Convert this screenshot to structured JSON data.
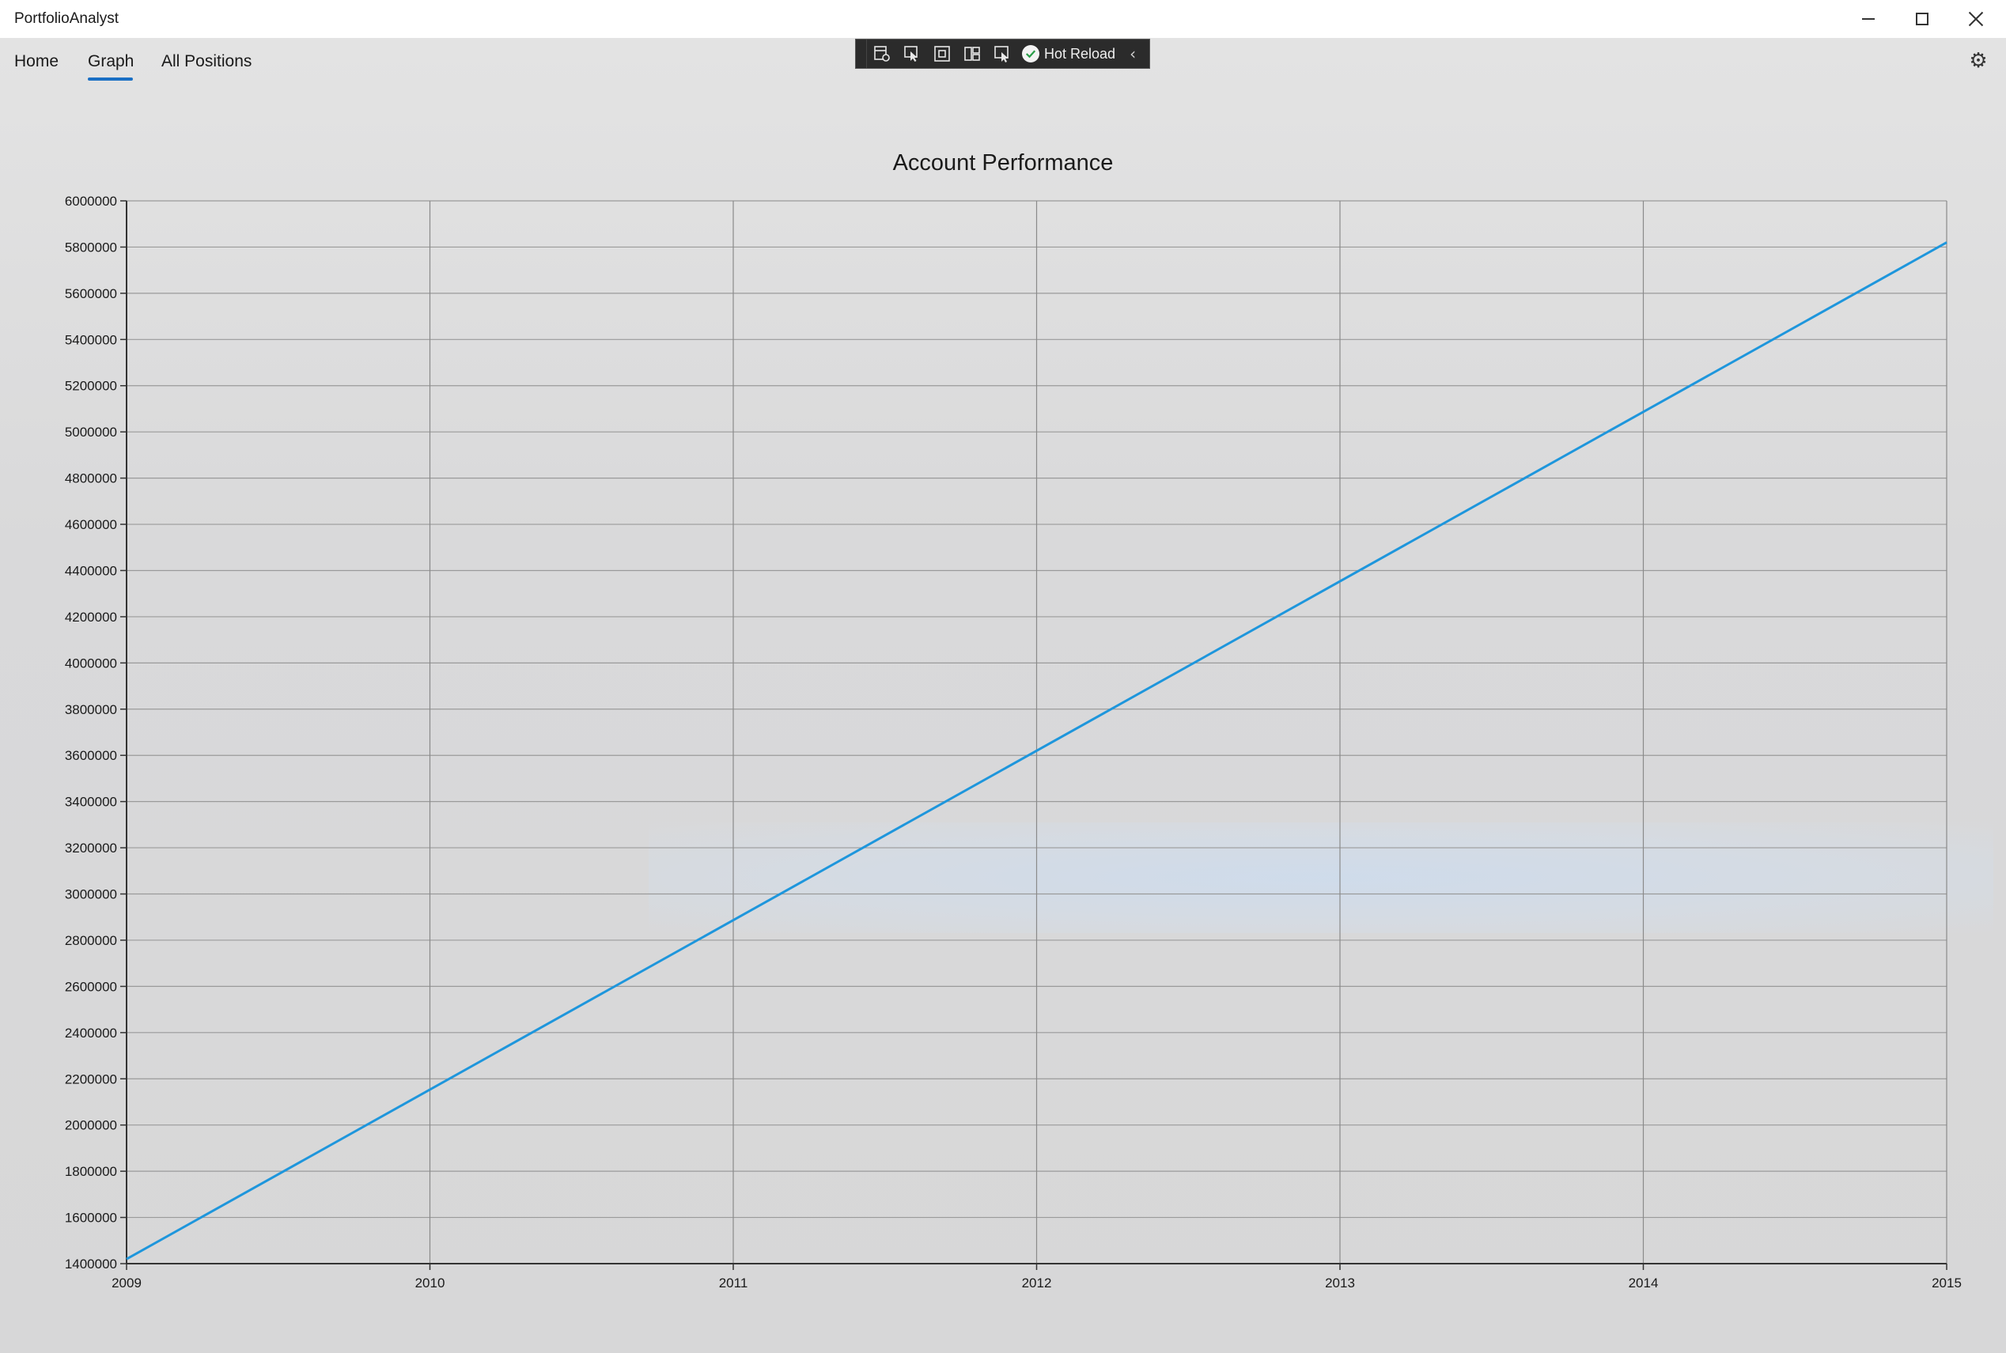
{
  "window": {
    "title": "PortfolioAnalyst"
  },
  "nav": {
    "items": [
      {
        "label": "Home"
      },
      {
        "label": "Graph",
        "selected": true
      },
      {
        "label": "All Positions"
      }
    ],
    "accent_color": "#1a6fc4"
  },
  "dev_toolbar": {
    "icons": [
      "live-visual-tree-icon",
      "select-element-icon",
      "display-layout-adorners-icon",
      "track-focus-icon",
      "binding-failures-icon"
    ],
    "hot_reload_label": "Hot Reload",
    "status": "ok"
  },
  "settings_icon": "gear-icon",
  "chart_data": {
    "type": "line",
    "title": "Account Performance",
    "xlabel": "",
    "ylabel": "",
    "x": [
      2009,
      2015
    ],
    "series": [
      {
        "values": [
          1420000,
          5820000
        ],
        "color": "#1e96dc"
      }
    ],
    "xlim": [
      2009,
      2015
    ],
    "ylim": [
      1400000,
      6000000
    ],
    "xticks": [
      "2009",
      "2010",
      "2011",
      "2012",
      "2013",
      "2014",
      "2015"
    ],
    "yticks": [
      "1400000",
      "1600000",
      "1800000",
      "2000000",
      "2200000",
      "2400000",
      "2600000",
      "2800000",
      "3000000",
      "3200000",
      "3400000",
      "3600000",
      "3800000",
      "4000000",
      "4200000",
      "4400000",
      "4600000",
      "4800000",
      "5000000",
      "5200000",
      "5400000",
      "5600000",
      "5800000",
      "6000000"
    ],
    "grid": true,
    "legend": "none"
  }
}
